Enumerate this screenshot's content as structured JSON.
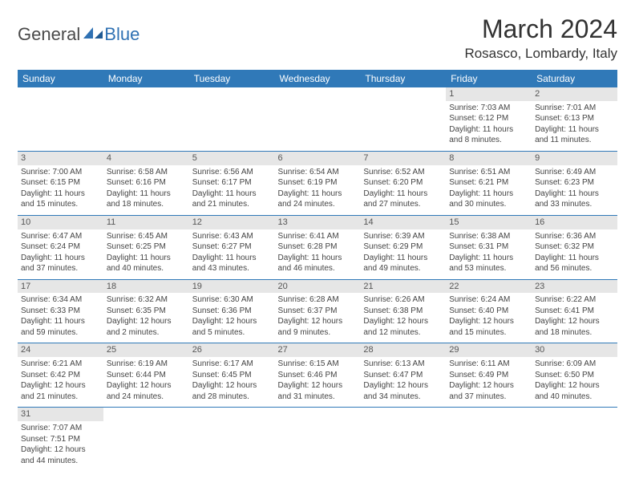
{
  "logo": {
    "text1": "General",
    "text2": "Blue"
  },
  "title": "March 2024",
  "location": "Rosasco, Lombardy, Italy",
  "colors": {
    "header_bg": "#3079b8",
    "header_text": "#ffffff",
    "daynum_bg": "#e6e6e6",
    "border": "#3079b8",
    "logo_blue": "#2f71b3"
  },
  "weekdays": [
    "Sunday",
    "Monday",
    "Tuesday",
    "Wednesday",
    "Thursday",
    "Friday",
    "Saturday"
  ],
  "weeks": [
    [
      null,
      null,
      null,
      null,
      null,
      {
        "n": "1",
        "sr": "Sunrise: 7:03 AM",
        "ss": "Sunset: 6:12 PM",
        "dl1": "Daylight: 11 hours",
        "dl2": "and 8 minutes."
      },
      {
        "n": "2",
        "sr": "Sunrise: 7:01 AM",
        "ss": "Sunset: 6:13 PM",
        "dl1": "Daylight: 11 hours",
        "dl2": "and 11 minutes."
      }
    ],
    [
      {
        "n": "3",
        "sr": "Sunrise: 7:00 AM",
        "ss": "Sunset: 6:15 PM",
        "dl1": "Daylight: 11 hours",
        "dl2": "and 15 minutes."
      },
      {
        "n": "4",
        "sr": "Sunrise: 6:58 AM",
        "ss": "Sunset: 6:16 PM",
        "dl1": "Daylight: 11 hours",
        "dl2": "and 18 minutes."
      },
      {
        "n": "5",
        "sr": "Sunrise: 6:56 AM",
        "ss": "Sunset: 6:17 PM",
        "dl1": "Daylight: 11 hours",
        "dl2": "and 21 minutes."
      },
      {
        "n": "6",
        "sr": "Sunrise: 6:54 AM",
        "ss": "Sunset: 6:19 PM",
        "dl1": "Daylight: 11 hours",
        "dl2": "and 24 minutes."
      },
      {
        "n": "7",
        "sr": "Sunrise: 6:52 AM",
        "ss": "Sunset: 6:20 PM",
        "dl1": "Daylight: 11 hours",
        "dl2": "and 27 minutes."
      },
      {
        "n": "8",
        "sr": "Sunrise: 6:51 AM",
        "ss": "Sunset: 6:21 PM",
        "dl1": "Daylight: 11 hours",
        "dl2": "and 30 minutes."
      },
      {
        "n": "9",
        "sr": "Sunrise: 6:49 AM",
        "ss": "Sunset: 6:23 PM",
        "dl1": "Daylight: 11 hours",
        "dl2": "and 33 minutes."
      }
    ],
    [
      {
        "n": "10",
        "sr": "Sunrise: 6:47 AM",
        "ss": "Sunset: 6:24 PM",
        "dl1": "Daylight: 11 hours",
        "dl2": "and 37 minutes."
      },
      {
        "n": "11",
        "sr": "Sunrise: 6:45 AM",
        "ss": "Sunset: 6:25 PM",
        "dl1": "Daylight: 11 hours",
        "dl2": "and 40 minutes."
      },
      {
        "n": "12",
        "sr": "Sunrise: 6:43 AM",
        "ss": "Sunset: 6:27 PM",
        "dl1": "Daylight: 11 hours",
        "dl2": "and 43 minutes."
      },
      {
        "n": "13",
        "sr": "Sunrise: 6:41 AM",
        "ss": "Sunset: 6:28 PM",
        "dl1": "Daylight: 11 hours",
        "dl2": "and 46 minutes."
      },
      {
        "n": "14",
        "sr": "Sunrise: 6:39 AM",
        "ss": "Sunset: 6:29 PM",
        "dl1": "Daylight: 11 hours",
        "dl2": "and 49 minutes."
      },
      {
        "n": "15",
        "sr": "Sunrise: 6:38 AM",
        "ss": "Sunset: 6:31 PM",
        "dl1": "Daylight: 11 hours",
        "dl2": "and 53 minutes."
      },
      {
        "n": "16",
        "sr": "Sunrise: 6:36 AM",
        "ss": "Sunset: 6:32 PM",
        "dl1": "Daylight: 11 hours",
        "dl2": "and 56 minutes."
      }
    ],
    [
      {
        "n": "17",
        "sr": "Sunrise: 6:34 AM",
        "ss": "Sunset: 6:33 PM",
        "dl1": "Daylight: 11 hours",
        "dl2": "and 59 minutes."
      },
      {
        "n": "18",
        "sr": "Sunrise: 6:32 AM",
        "ss": "Sunset: 6:35 PM",
        "dl1": "Daylight: 12 hours",
        "dl2": "and 2 minutes."
      },
      {
        "n": "19",
        "sr": "Sunrise: 6:30 AM",
        "ss": "Sunset: 6:36 PM",
        "dl1": "Daylight: 12 hours",
        "dl2": "and 5 minutes."
      },
      {
        "n": "20",
        "sr": "Sunrise: 6:28 AM",
        "ss": "Sunset: 6:37 PM",
        "dl1": "Daylight: 12 hours",
        "dl2": "and 9 minutes."
      },
      {
        "n": "21",
        "sr": "Sunrise: 6:26 AM",
        "ss": "Sunset: 6:38 PM",
        "dl1": "Daylight: 12 hours",
        "dl2": "and 12 minutes."
      },
      {
        "n": "22",
        "sr": "Sunrise: 6:24 AM",
        "ss": "Sunset: 6:40 PM",
        "dl1": "Daylight: 12 hours",
        "dl2": "and 15 minutes."
      },
      {
        "n": "23",
        "sr": "Sunrise: 6:22 AM",
        "ss": "Sunset: 6:41 PM",
        "dl1": "Daylight: 12 hours",
        "dl2": "and 18 minutes."
      }
    ],
    [
      {
        "n": "24",
        "sr": "Sunrise: 6:21 AM",
        "ss": "Sunset: 6:42 PM",
        "dl1": "Daylight: 12 hours",
        "dl2": "and 21 minutes."
      },
      {
        "n": "25",
        "sr": "Sunrise: 6:19 AM",
        "ss": "Sunset: 6:44 PM",
        "dl1": "Daylight: 12 hours",
        "dl2": "and 24 minutes."
      },
      {
        "n": "26",
        "sr": "Sunrise: 6:17 AM",
        "ss": "Sunset: 6:45 PM",
        "dl1": "Daylight: 12 hours",
        "dl2": "and 28 minutes."
      },
      {
        "n": "27",
        "sr": "Sunrise: 6:15 AM",
        "ss": "Sunset: 6:46 PM",
        "dl1": "Daylight: 12 hours",
        "dl2": "and 31 minutes."
      },
      {
        "n": "28",
        "sr": "Sunrise: 6:13 AM",
        "ss": "Sunset: 6:47 PM",
        "dl1": "Daylight: 12 hours",
        "dl2": "and 34 minutes."
      },
      {
        "n": "29",
        "sr": "Sunrise: 6:11 AM",
        "ss": "Sunset: 6:49 PM",
        "dl1": "Daylight: 12 hours",
        "dl2": "and 37 minutes."
      },
      {
        "n": "30",
        "sr": "Sunrise: 6:09 AM",
        "ss": "Sunset: 6:50 PM",
        "dl1": "Daylight: 12 hours",
        "dl2": "and 40 minutes."
      }
    ],
    [
      {
        "n": "31",
        "sr": "Sunrise: 7:07 AM",
        "ss": "Sunset: 7:51 PM",
        "dl1": "Daylight: 12 hours",
        "dl2": "and 44 minutes."
      },
      null,
      null,
      null,
      null,
      null,
      null
    ]
  ]
}
